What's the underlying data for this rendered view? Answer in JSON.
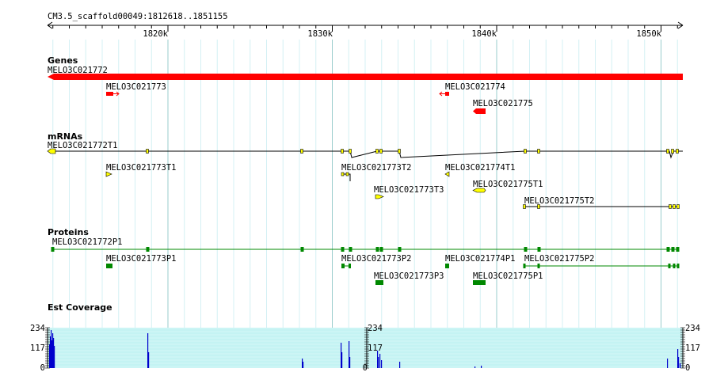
{
  "ruler": {
    "label": "CM3.5_scaffold00049:1812618..1851155",
    "ticks": [
      "1820k",
      "1830k",
      "1840k",
      "1850k"
    ]
  },
  "tracks": [
    {
      "title": "Genes",
      "features": [
        "MELO3C021772",
        "MELO3C021773",
        "MELO3C021774",
        "MELO3C021775"
      ]
    },
    {
      "title": "mRNAs",
      "features": [
        "MELO3C021772T1",
        "MELO3C021773T1",
        "MELO3C021773T2",
        "MELO3C021774T1",
        "MELO3C021773T3",
        "MELO3C021775T1",
        "MELO3C021775T2"
      ]
    },
    {
      "title": "Proteins",
      "features": [
        "MELO3C021772P1",
        "MELO3C021773P1",
        "MELO3C021773P2",
        "MELO3C021774P1",
        "MELO3C021775P2",
        "MELO3C021773P3",
        "MELO3C021775P1"
      ]
    },
    {
      "title": "Est Coverage",
      "scale_labels": [
        "234",
        "117",
        "0"
      ]
    }
  ]
}
